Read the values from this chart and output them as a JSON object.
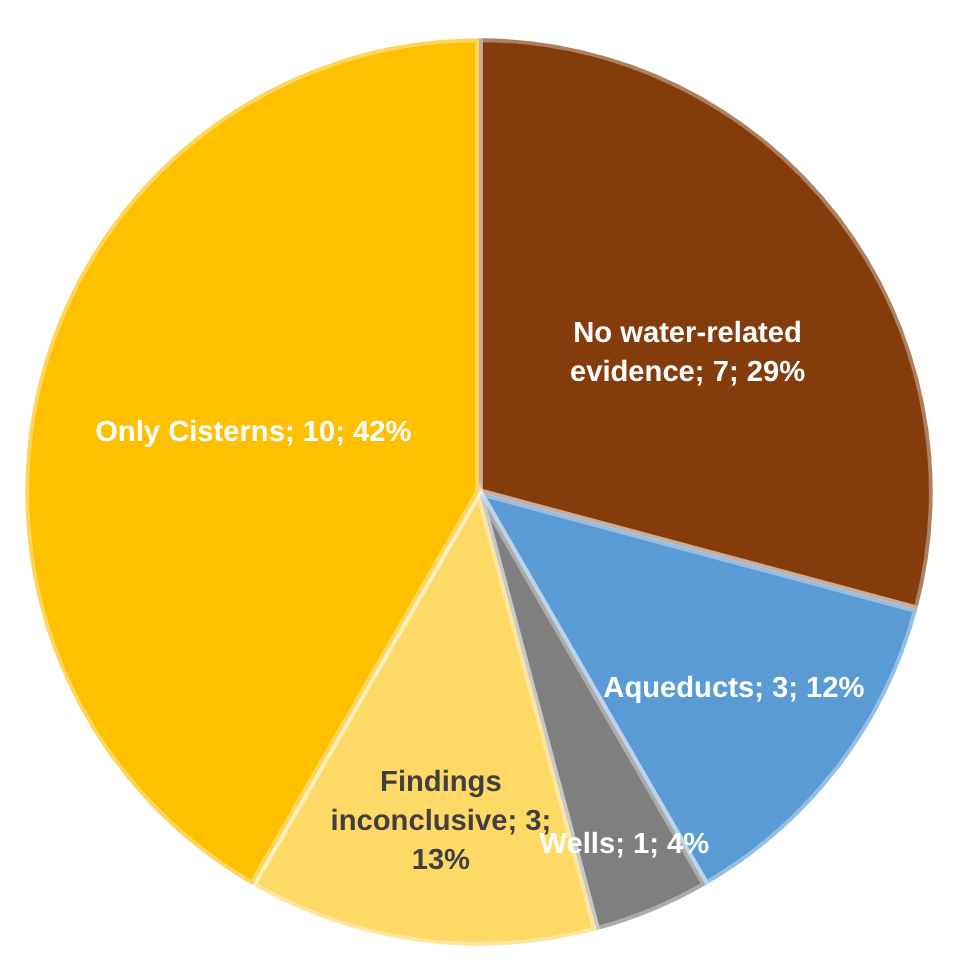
{
  "chart_data": {
    "type": "pie",
    "categories": [
      "No water-related evidence",
      "Aqueducts",
      "Wells",
      "Findings inconclusive",
      "Only Cisterns"
    ],
    "values": [
      7,
      3,
      1,
      3,
      10
    ],
    "colors": [
      "#843c0c",
      "#5b9bd5",
      "#7f7f7f",
      "#ffd966",
      "#ffc000"
    ],
    "value_labels": [
      "7; 29%",
      "3; 12%",
      "1; 4%",
      "3; 13%",
      "10; 42%"
    ],
    "legend": false
  }
}
